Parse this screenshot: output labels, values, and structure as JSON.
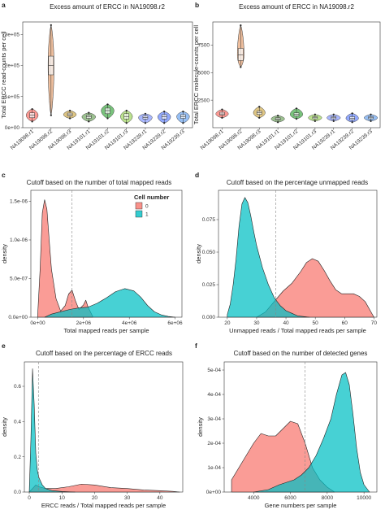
{
  "colors": {
    "group0": "#f8766d",
    "group1": "#00bfc4",
    "violin": [
      "#f8766d",
      "#e8a87c",
      "#d3b25b",
      "#7cae6c",
      "#4caf50",
      "#a6d96a",
      "#8da0ff",
      "#6f8dff",
      "#74a9f0"
    ]
  },
  "panels": [
    {
      "label": "a",
      "title": "Excess amount of ERCC in NA19098.r2",
      "ylabel": "Total ERCC read-counts per cell",
      "yticks": [
        "0e+00",
        "1e+05",
        "2e+05",
        "3e+05"
      ],
      "xticks": [
        "NA19098.r1",
        "NA19098.r2",
        "NA19098.r3",
        "NA19101.r1",
        "NA19101.r2",
        "NA19101.r3",
        "NA19239.r1",
        "NA19239.r2",
        "NA19239.r3"
      ]
    },
    {
      "label": "b",
      "title": "Excess amount of ERCC in NA19098.r2",
      "ylabel": "Total ERCC molecule-counts per cell",
      "yticks": [
        "2500",
        "5000",
        "7500"
      ],
      "xticks": [
        "NA19098.r1",
        "NA19098.r2",
        "NA19098.r3",
        "NA19101.r1",
        "NA19101.r2",
        "NA19101.r3",
        "NA19239.r1",
        "NA19239.r2",
        "NA19239.r3"
      ]
    },
    {
      "label": "c",
      "title": "Cutoff based on the number of total mapped reads",
      "xlabel": "Total mapped reads per sample",
      "ylabel": "density",
      "xticks": [
        "0e+00",
        "2e+06",
        "4e+06",
        "6e+06"
      ],
      "yticks": [
        "0.0e+00",
        "5.0e-07",
        "1.0e-06",
        "1.5e-06"
      ],
      "legend_title": "Cell number",
      "legend_items": [
        "0",
        "1"
      ]
    },
    {
      "label": "d",
      "title": "Cutoff based on the percentage unmapped reads",
      "xlabel": "Unmapped reads / Total mapped reads per sample",
      "ylabel": "density",
      "xticks": [
        "20",
        "30",
        "40",
        "50",
        "60",
        "70"
      ],
      "yticks": [
        "0.000",
        "0.025",
        "0.050",
        "0.075"
      ]
    },
    {
      "label": "e",
      "title": "Cutoff based on the percentage of ERCC reads",
      "xlabel": "ERCC reads / Total mapped reads per sample",
      "ylabel": "density",
      "xticks": [
        "0",
        "10",
        "20",
        "30",
        "40"
      ],
      "yticks": [
        "0.0",
        "0.2",
        "0.4",
        "0.6"
      ]
    },
    {
      "label": "f",
      "title": "Cutoff based on the number of detected genes",
      "xlabel": "Gene numbers per sample",
      "ylabel": "density",
      "xticks": [
        "4000",
        "6000",
        "8000",
        "10000"
      ],
      "yticks": [
        "0e+00",
        "1e-04",
        "2e-04",
        "3e-04",
        "4e-04",
        "5e-04"
      ]
    }
  ],
  "chart_data": [
    {
      "type": "violin",
      "title": "Excess amount of ERCC in NA19098.r2",
      "ylabel": "Total ERCC read-counts per cell",
      "categories": [
        "NA19098.r1",
        "NA19098.r2",
        "NA19098.r3",
        "NA19101.r1",
        "NA19101.r2",
        "NA19101.r3",
        "NA19239.r1",
        "NA19239.r2",
        "NA19239.r3"
      ],
      "ylim": [
        0,
        340000
      ],
      "groups": [
        {
          "min": 20000,
          "q1": 32000,
          "median": 40000,
          "q3": 48000,
          "max": 60000,
          "width": 0.7
        },
        {
          "min": 40000,
          "q1": 170000,
          "median": 200000,
          "q3": 230000,
          "max": 330000,
          "width": 0.35
        },
        {
          "min": 30000,
          "q1": 38000,
          "median": 42000,
          "q3": 47000,
          "max": 55000,
          "width": 0.75
        },
        {
          "min": 20000,
          "q1": 30000,
          "median": 35000,
          "q3": 40000,
          "max": 48000,
          "width": 0.8
        },
        {
          "min": 30000,
          "q1": 45000,
          "median": 55000,
          "q3": 63000,
          "max": 75000,
          "width": 0.75
        },
        {
          "min": 15000,
          "q1": 28000,
          "median": 36000,
          "q3": 45000,
          "max": 55000,
          "width": 0.7
        },
        {
          "min": 15000,
          "q1": 28000,
          "median": 33000,
          "q3": 38000,
          "max": 45000,
          "width": 0.8
        },
        {
          "min": 15000,
          "q1": 28000,
          "median": 35000,
          "q3": 42000,
          "max": 52000,
          "width": 0.75
        },
        {
          "min": 15000,
          "q1": 30000,
          "median": 36000,
          "q3": 42000,
          "max": 52000,
          "width": 0.75
        }
      ]
    },
    {
      "type": "violin",
      "title": "Excess amount of ERCC in NA19098.r2",
      "ylabel": "Total ERCC molecule-counts per cell",
      "categories": [
        "NA19098.r1",
        "NA19098.r2",
        "NA19098.r3",
        "NA19101.r1",
        "NA19101.r2",
        "NA19101.r3",
        "NA19239.r1",
        "NA19239.r2",
        "NA19239.r3"
      ],
      "ylim": [
        0,
        9600
      ],
      "groups": [
        {
          "min": 900,
          "q1": 1150,
          "median": 1250,
          "q3": 1400,
          "max": 1650,
          "width": 0.75
        },
        {
          "min": 5500,
          "q1": 6100,
          "median": 6600,
          "q3": 7200,
          "max": 9300,
          "width": 0.4
        },
        {
          "min": 900,
          "q1": 1200,
          "median": 1350,
          "q3": 1500,
          "max": 1900,
          "width": 0.7
        },
        {
          "min": 500,
          "q1": 700,
          "median": 800,
          "q3": 900,
          "max": 1100,
          "width": 0.8
        },
        {
          "min": 800,
          "q1": 1050,
          "median": 1200,
          "q3": 1350,
          "max": 1750,
          "width": 0.75
        },
        {
          "min": 600,
          "q1": 800,
          "median": 900,
          "q3": 1000,
          "max": 1200,
          "width": 0.8
        },
        {
          "min": 600,
          "q1": 800,
          "median": 900,
          "q3": 1000,
          "max": 1200,
          "width": 0.8
        },
        {
          "min": 500,
          "q1": 700,
          "median": 850,
          "q3": 1000,
          "max": 1300,
          "width": 0.75
        },
        {
          "min": 600,
          "q1": 800,
          "median": 900,
          "q3": 1000,
          "max": 1200,
          "width": 0.8
        }
      ]
    },
    {
      "type": "area",
      "title": "Cutoff based on the number of total mapped reads",
      "xlabel": "Total mapped reads per sample",
      "ylabel": "density",
      "xlim": [
        -300000,
        6300000
      ],
      "ylim": [
        0,
        1.6e-06
      ],
      "cutoff": 1500000,
      "series": [
        {
          "name": "0",
          "x": [
            0,
            100000,
            200000,
            300000,
            400000,
            500000,
            600000,
            800000,
            1000000,
            1200000,
            1350000,
            1500000,
            1650000,
            1800000,
            2000000,
            2100000,
            2200000,
            2400000
          ],
          "y": [
            4e-08,
            6e-07,
            1.35e-06,
            1.52e-06,
            1.4e-06,
            1e-06,
            6.2e-07,
            2.4e-07,
            8e-08,
            1.5e-07,
            3e-07,
            3.5e-07,
            2.1e-07,
            1e-07,
            1.6e-07,
            2.2e-07,
            1.3e-07,
            1e-08
          ]
        },
        {
          "name": "1",
          "x": [
            300000,
            600000,
            1000000,
            1400000,
            1800000,
            2200000,
            2600000,
            3000000,
            3400000,
            3800000,
            4200000,
            4500000,
            4800000,
            5100000,
            5400000,
            5700000,
            6000000
          ],
          "y": [
            0,
            4e-08,
            7e-08,
            1e-07,
            1.2e-07,
            1.3e-07,
            1.8e-07,
            2.5e-07,
            3.3e-07,
            3.7e-07,
            3.4e-07,
            2.6e-07,
            1.5e-07,
            7e-08,
            3e-08,
            1e-08,
            0
          ]
        }
      ]
    },
    {
      "type": "area",
      "title": "Cutoff based on the percentage unmapped reads",
      "xlabel": "Unmapped reads / Total mapped reads per sample",
      "ylabel": "density",
      "xlim": [
        17,
        71
      ],
      "ylim": [
        0,
        0.095
      ],
      "cutoff": 36.5,
      "series": [
        {
          "name": "0",
          "x": [
            30,
            33,
            36,
            39,
            42,
            45,
            47,
            49,
            51,
            53,
            55,
            57,
            59,
            61,
            63,
            65,
            67,
            69,
            70
          ],
          "y": [
            0.0,
            0.004,
            0.012,
            0.02,
            0.026,
            0.035,
            0.042,
            0.045,
            0.043,
            0.036,
            0.028,
            0.021,
            0.018,
            0.018,
            0.018,
            0.016,
            0.012,
            0.004,
            0.0
          ]
        },
        {
          "name": "1",
          "x": [
            20,
            21,
            22,
            23,
            24,
            25,
            26,
            27,
            28,
            29,
            30,
            32,
            34,
            36,
            38,
            40,
            42,
            44,
            46,
            48
          ],
          "y": [
            0.002,
            0.01,
            0.025,
            0.045,
            0.07,
            0.087,
            0.092,
            0.088,
            0.078,
            0.066,
            0.055,
            0.038,
            0.025,
            0.015,
            0.009,
            0.005,
            0.003,
            0.001,
            0.0005,
            0.0
          ]
        }
      ]
    },
    {
      "type": "area",
      "title": "Cutoff based on the percentage of ERCC reads",
      "xlabel": "ERCC reads / Total mapped reads per sample",
      "ylabel": "density",
      "xlim": [
        -1.5,
        47
      ],
      "ylim": [
        0,
        0.72
      ],
      "cutoff": 2.8,
      "series": [
        {
          "name": "0",
          "x": [
            0,
            1,
            2,
            3,
            5,
            8,
            12,
            16,
            20,
            25,
            30,
            35,
            40,
            44,
            46
          ],
          "y": [
            0.0,
            0.02,
            0.04,
            0.03,
            0.02,
            0.02,
            0.03,
            0.045,
            0.04,
            0.025,
            0.02,
            0.012,
            0.008,
            0.004,
            0.0
          ]
        },
        {
          "name": "1",
          "x": [
            0,
            0.5,
            1.0,
            1.5,
            2.0,
            2.5,
            3.0,
            4.0,
            5.0,
            7.0,
            10.0,
            14.0
          ],
          "y": [
            0.0,
            0.3,
            0.7,
            0.5,
            0.22,
            0.12,
            0.08,
            0.04,
            0.02,
            0.008,
            0.003,
            0.0
          ]
        }
      ]
    },
    {
      "type": "area",
      "title": "Cutoff based on the number of detected genes",
      "xlabel": "Gene numbers per sample",
      "ylabel": "density",
      "xlim": [
        2400,
        10700
      ],
      "ylim": [
        0,
        0.00052
      ],
      "cutoff": 6800,
      "series": [
        {
          "name": "0",
          "x": [
            2800,
            3200,
            3600,
            4000,
            4400,
            4800,
            5200,
            5600,
            6000,
            6400,
            6800,
            7000,
            7200,
            7600,
            8000,
            8400
          ],
          "y": [
            5e-05,
            0.0001,
            0.00015,
            0.0002,
            0.00024,
            0.00023,
            0.00023,
            0.00026,
            0.00029,
            0.00028,
            0.0002,
            0.00015,
            0.0001,
            5e-05,
            2e-05,
            0.0
          ]
        },
        {
          "name": "1",
          "x": [
            4000,
            4800,
            5400,
            5800,
            6200,
            6600,
            7000,
            7400,
            7800,
            8200,
            8500,
            8800,
            9000,
            9200,
            9400,
            9600,
            9800,
            10000,
            10300
          ],
          "y": [
            0.0,
            1e-05,
            3e-05,
            4e-05,
            5e-05,
            7e-05,
            0.0001,
            0.00015,
            0.00022,
            0.0003,
            0.0004,
            0.00048,
            0.00049,
            0.00044,
            0.00032,
            0.00018,
            8e-05,
            3e-05,
            0.0
          ]
        }
      ]
    }
  ]
}
